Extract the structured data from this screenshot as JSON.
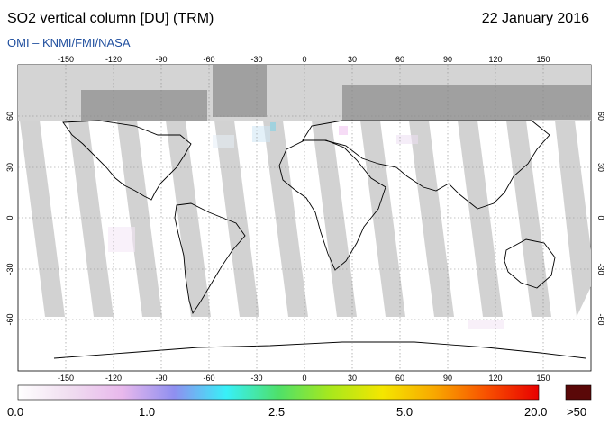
{
  "header": {
    "title": "SO2 vertical column [DU] (TRM)",
    "date": "22 January 2016",
    "credit": "OMI  –  KNMI/FMI/NASA"
  },
  "map": {
    "lon_ticks": [
      "-150",
      "-120",
      "-90",
      "-60",
      "-30",
      "0",
      "30",
      "60",
      "90",
      "120",
      "150"
    ],
    "lat_ticks": [
      "60",
      "30",
      "0",
      "-30",
      "-60"
    ]
  },
  "colorbar": {
    "labels": [
      "0.0",
      "1.0",
      "2.5",
      "5.0",
      "20.0",
      ">50"
    ],
    "stops": [
      "#ffffff",
      "#f0ddf0",
      "#e8b8ec",
      "#8f8ff0",
      "#38f0f8",
      "#4ee06a",
      "#a8e81c",
      "#f4e600",
      "#f8a800",
      "#f85000",
      "#e80000"
    ],
    "overflow_color": "#5a0808"
  }
}
